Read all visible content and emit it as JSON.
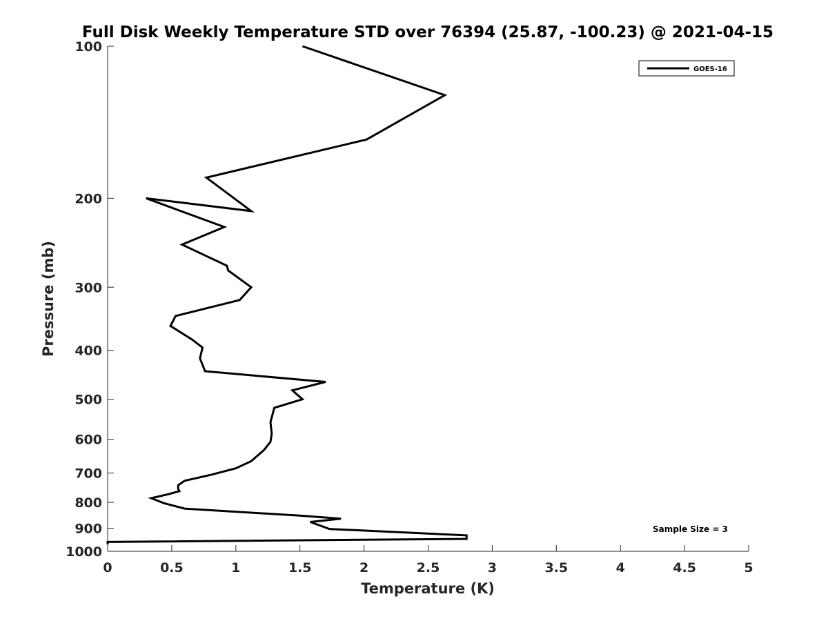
{
  "chart_data": {
    "type": "line",
    "title": "Full Disk Weekly Temperature STD over 76394 (25.87, -100.23) @ 2021-04-15",
    "xlabel": "Temperature (K)",
    "ylabel": "Pressure (mb)",
    "xlim": [
      0,
      5
    ],
    "ylim": [
      100,
      1000
    ],
    "y_scale": "log",
    "y_reversed": true,
    "xticks": [
      "0",
      "0.5",
      "1",
      "1.5",
      "2",
      "2.5",
      "3",
      "3.5",
      "4",
      "4.5",
      "5"
    ],
    "yticks": [
      "100",
      "200",
      "300",
      "400",
      "500",
      "600",
      "700",
      "800",
      "900",
      "1000"
    ],
    "grid": false,
    "legend_position": "top-right",
    "annotation": "Sample Size = 3",
    "series": [
      {
        "name": "GOES-16",
        "color": "#000000",
        "points": [
          [
            1.52,
            100
          ],
          [
            2.63,
            125
          ],
          [
            2.02,
            153
          ],
          [
            0.77,
            182
          ],
          [
            1.12,
            212
          ],
          [
            0.3,
            200
          ],
          [
            0.91,
            228
          ],
          [
            0.58,
            247
          ],
          [
            0.93,
            272
          ],
          [
            0.94,
            278
          ],
          [
            1.12,
            300
          ],
          [
            1.03,
            318
          ],
          [
            0.53,
            342
          ],
          [
            0.49,
            358
          ],
          [
            0.66,
            381
          ],
          [
            0.74,
            395
          ],
          [
            0.72,
            415
          ],
          [
            0.76,
            440
          ],
          [
            1.7,
            462
          ],
          [
            1.44,
            480
          ],
          [
            1.52,
            500
          ],
          [
            1.3,
            520
          ],
          [
            1.27,
            555
          ],
          [
            1.28,
            585
          ],
          [
            1.27,
            607
          ],
          [
            1.22,
            630
          ],
          [
            1.12,
            663
          ],
          [
            1.0,
            685
          ],
          [
            0.81,
            705
          ],
          [
            0.6,
            725
          ],
          [
            0.55,
            740
          ],
          [
            0.55,
            752
          ],
          [
            0.56,
            760
          ],
          [
            0.48,
            770
          ],
          [
            0.34,
            785
          ],
          [
            0.44,
            803
          ],
          [
            0.6,
            823
          ],
          [
            1.5,
            850
          ],
          [
            1.82,
            862
          ],
          [
            1.58,
            875
          ],
          [
            1.73,
            903
          ],
          [
            2.8,
            930
          ],
          [
            2.8,
            945
          ],
          [
            0.0,
            958
          ],
          [
            0.0,
            968
          ]
        ]
      }
    ]
  }
}
